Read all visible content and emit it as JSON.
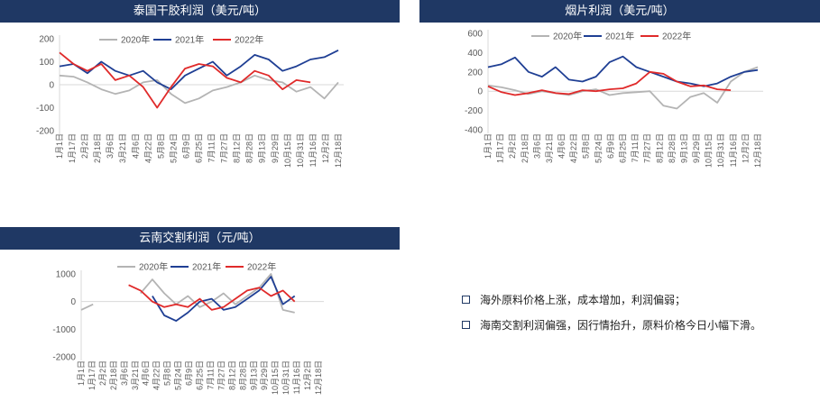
{
  "panels": [
    {
      "title": "泰国干胶利润（美元/吨）"
    },
    {
      "title": "烟片利润（美元/吨）"
    },
    {
      "title": "云南交割利润（元/吨）"
    }
  ],
  "notes": [
    "海外原料价格上涨，成本增加，利润偏弱；",
    "海南交割利润偏强，因行情抬升，原料价格今日小幅下滑。"
  ],
  "colors": {
    "2020年": "#b4b4b4",
    "2021年": "#1f3f94",
    "2022年": "#e02a2a",
    "header": "#1f3864"
  },
  "chart_data": [
    {
      "type": "line",
      "title": "泰国干胶利润（美元/吨）",
      "x": [
        "1月1日",
        "1月19日",
        "2月6日",
        "2月24日",
        "3月14日",
        "4月1日",
        "4月19日",
        "5月7日",
        "5月25日",
        "6月12日",
        "6月30日",
        "7月18日",
        "8月5日",
        "8月23日",
        "9月10日",
        "9月28日",
        "10月16日",
        "11月3日",
        "11月21日",
        "12月9日",
        "12月27日"
      ],
      "x_tick_labels": [
        "1月1日",
        "1月17日",
        "2月2日",
        "2月18日",
        "3月6日",
        "3月21日",
        "4月6日",
        "4月22日",
        "5月8日",
        "5月24日",
        "6月9日",
        "6月25日",
        "7月11日",
        "7月27日",
        "8月12日",
        "8月28日",
        "9月13日",
        "9月29日",
        "10月15日",
        "10月31日",
        "11月16日",
        "12月2日",
        "12月18日"
      ],
      "ylim": [
        -200,
        200
      ],
      "yticks": [
        -200,
        -100,
        0,
        100,
        200
      ],
      "ytick_labels": [
        "-200",
        "-100",
        "0",
        "100",
        "200"
      ],
      "series": [
        {
          "name": "2020年",
          "values": [
            40,
            35,
            10,
            -20,
            -40,
            -25,
            10,
            20,
            -40,
            -80,
            -60,
            -25,
            -10,
            10,
            40,
            20,
            10,
            -30,
            -10,
            -60,
            10
          ]
        },
        {
          "name": "2021年",
          "values": [
            80,
            90,
            50,
            100,
            60,
            40,
            60,
            10,
            -20,
            40,
            70,
            100,
            40,
            80,
            130,
            110,
            60,
            80,
            110,
            120,
            150
          ]
        },
        {
          "name": "2022年",
          "values": [
            140,
            90,
            60,
            90,
            20,
            40,
            -10,
            -100,
            -10,
            70,
            90,
            80,
            30,
            10,
            60,
            40,
            -20,
            20,
            10,
            null,
            null
          ]
        }
      ]
    },
    {
      "type": "line",
      "title": "烟片利润（美元/吨）",
      "x": [
        "1月1日",
        "1月19日",
        "2月6日",
        "2月24日",
        "3月14日",
        "4月1日",
        "4月19日",
        "5月7日",
        "5月25日",
        "6月12日",
        "6月30日",
        "7月18日",
        "8月5日",
        "8月23日",
        "9月10日",
        "9月28日",
        "10月16日",
        "11月3日",
        "11月21日",
        "12月9日",
        "12月27日"
      ],
      "x_tick_labels": [
        "1月1日",
        "1月17日",
        "2月2日",
        "2月18日",
        "3月6日",
        "3月21日",
        "4月6日",
        "4月22日",
        "5月8日",
        "5月24日",
        "6月9日",
        "6月25日",
        "7月11日",
        "7月27日",
        "8月12日",
        "8月28日",
        "9月13日",
        "9月29日",
        "10月15日",
        "10月31日",
        "11月16日",
        "12月2日",
        "12月18日"
      ],
      "ylim": [
        -400,
        600
      ],
      "yticks": [
        -400,
        -200,
        0,
        200,
        400,
        600
      ],
      "ytick_labels": [
        "-400",
        "-200",
        "0",
        "200",
        "400",
        "600"
      ],
      "series": [
        {
          "name": "2020年",
          "values": [
            60,
            40,
            10,
            -30,
            0,
            -20,
            -40,
            0,
            20,
            -40,
            -20,
            -10,
            0,
            -150,
            -180,
            -60,
            -20,
            -120,
            100,
            200,
            250
          ]
        },
        {
          "name": "2021年",
          "values": [
            250,
            280,
            350,
            200,
            150,
            250,
            120,
            100,
            150,
            300,
            360,
            250,
            200,
            150,
            100,
            80,
            50,
            80,
            150,
            200,
            220
          ]
        },
        {
          "name": "2022年",
          "values": [
            50,
            -10,
            -40,
            -20,
            10,
            -20,
            -30,
            10,
            0,
            20,
            30,
            80,
            200,
            180,
            100,
            50,
            60,
            20,
            10,
            null,
            null
          ]
        }
      ]
    },
    {
      "type": "line",
      "title": "云南交割利润（元/吨）",
      "x": [
        "1月1日",
        "1月19日",
        "2月6日",
        "2月24日",
        "3月14日",
        "4月1日",
        "4月19日",
        "5月7日",
        "5月25日",
        "6月12日",
        "6月30日",
        "7月18日",
        "8月5日",
        "8月23日",
        "9月10日",
        "9月28日",
        "10月16日",
        "11月3日",
        "11月21日",
        "12月9日",
        "12月27日"
      ],
      "x_tick_labels": [
        "1月1日",
        "1月17日",
        "2月2日",
        "2月18日",
        "3月6日",
        "3月21日",
        "4月6日",
        "4月22日",
        "5月8日",
        "5月24日",
        "6月9日",
        "6月25日",
        "7月11日",
        "7月27日",
        "8月12日",
        "8月28日",
        "9月13日",
        "9月29日",
        "10月15日",
        "10月31日",
        "11月16日",
        "12月2日",
        "12月18日"
      ],
      "ylim": [
        -2000,
        1000
      ],
      "yticks": [
        -2000,
        -1000,
        0,
        1000
      ],
      "ytick_labels": [
        "-2000",
        "-1000",
        "0",
        "1000"
      ],
      "series": [
        {
          "name": "2020年",
          "values": [
            -300,
            -100,
            null,
            null,
            null,
            300,
            800,
            300,
            -100,
            200,
            -200,
            0,
            300,
            -100,
            200,
            500,
            1000,
            -300,
            -400,
            null,
            null
          ]
        },
        {
          "name": "2021年",
          "values": [
            null,
            null,
            null,
            null,
            null,
            null,
            200,
            -500,
            -700,
            -400,
            0,
            100,
            -300,
            -200,
            100,
            400,
            900,
            -100,
            200,
            null,
            null
          ]
        },
        {
          "name": "2022年",
          "values": [
            null,
            null,
            null,
            null,
            600,
            400,
            0,
            -200,
            -100,
            -200,
            100,
            -300,
            -200,
            100,
            400,
            500,
            200,
            400,
            0,
            null,
            null
          ]
        }
      ]
    }
  ]
}
